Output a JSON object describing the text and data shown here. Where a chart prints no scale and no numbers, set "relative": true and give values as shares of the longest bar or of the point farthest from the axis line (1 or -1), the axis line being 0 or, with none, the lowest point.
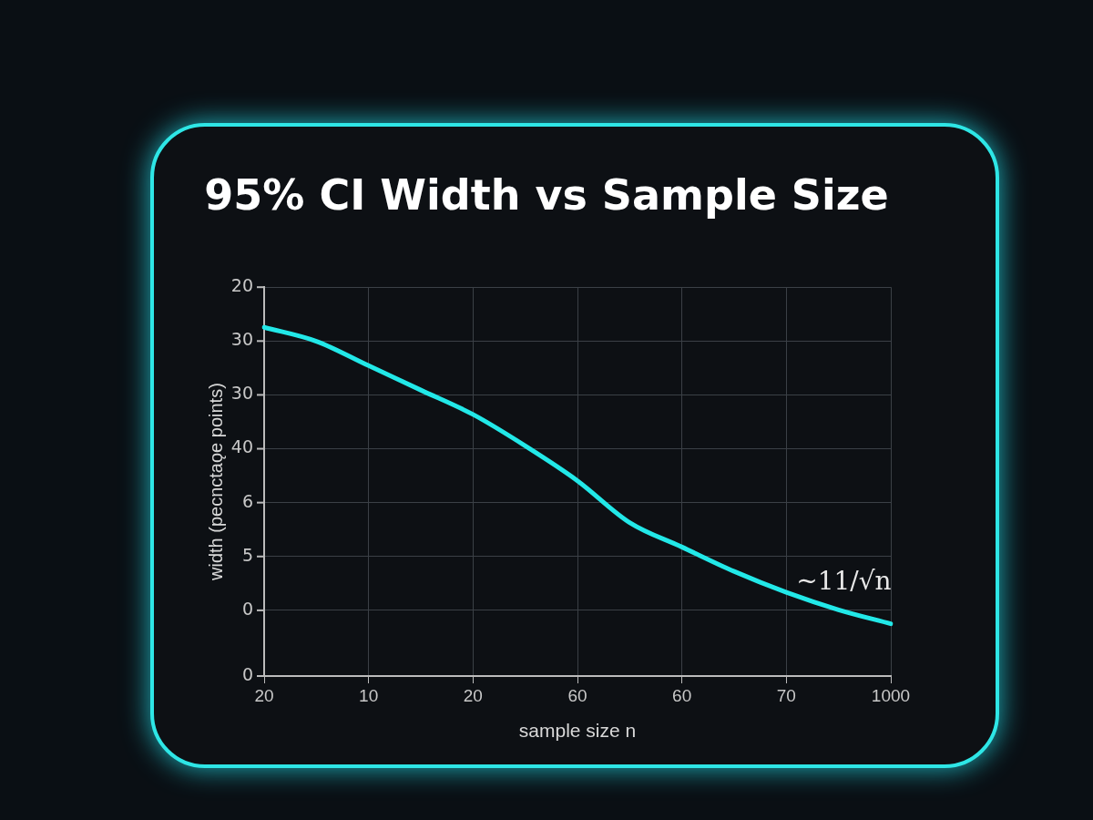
{
  "chart_data": {
    "type": "line",
    "title": "95% CI Width vs Sample Size",
    "xlabel": "sample size n",
    "ylabel": "width (pecnctaǫe points)",
    "categories": [
      "20",
      null,
      "10",
      null,
      "20",
      null,
      "60",
      null,
      "60",
      null,
      "70",
      null,
      "1000"
    ],
    "series": [
      {
        "color": "#22e8e8",
        "values": [
          1,
          0.96,
          0.89,
          0.82,
          0.75,
          0.66,
          0.56,
          0.44,
          0.37,
          0.3,
          0.24,
          0.19,
          0.15
        ]
      }
    ],
    "relative": true,
    "grid": true,
    "marker": "none",
    "line_style": "solid",
    "annotations": [
      "~11/√n",
      "20",
      "30",
      "30",
      "40",
      "6",
      "5",
      "0",
      "0"
    ]
  }
}
